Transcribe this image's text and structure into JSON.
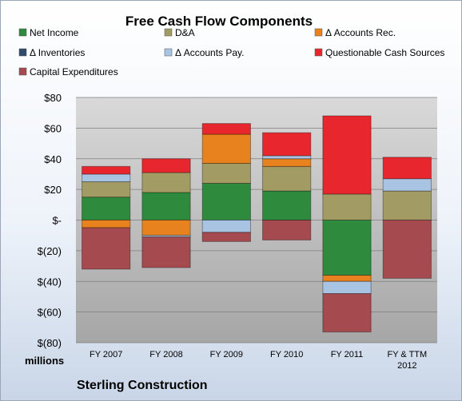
{
  "chart_data": {
    "type": "bar",
    "stacked": true,
    "title": "Free Cash Flow Components",
    "units_label": "millions",
    "company": "Sterling Construction",
    "categories": [
      "FY 2007",
      "FY 2008",
      "FY 2009",
      "FY 2010",
      "FY 2011",
      "FY & TTM 2012"
    ],
    "ylim": [
      -80,
      80
    ],
    "y_ticks": [
      80,
      60,
      40,
      20,
      0,
      -20,
      -40,
      -60,
      -80
    ],
    "y_tick_labels": [
      "$80",
      "$60",
      "$40",
      "$20",
      "$-",
      "$(20)",
      "$(40)",
      "$(60)",
      "$(80)"
    ],
    "grid": true,
    "legend_position": "top",
    "series": [
      {
        "name": "Net Income",
        "color": "#2e8b3e",
        "values": [
          15,
          18,
          24,
          19,
          -36,
          0
        ]
      },
      {
        "name": "D&A",
        "color": "#a39b64",
        "values": [
          10,
          13,
          13,
          16,
          17,
          19
        ]
      },
      {
        "name": "Δ Accounts Rec.",
        "color": "#e8821e",
        "values": [
          -5,
          -10,
          19,
          5,
          -4,
          0
        ]
      },
      {
        "name": "Δ Inventories",
        "color": "#2f4a6b",
        "values": [
          0,
          0,
          0,
          0,
          0,
          0
        ]
      },
      {
        "name": "Δ Accounts Pay.",
        "color": "#a9c3e3",
        "values": [
          5,
          -1,
          -8,
          2,
          -8,
          8
        ]
      },
      {
        "name": "Questionable Cash Sources",
        "color": "#e8262d",
        "values": [
          5,
          9,
          7,
          15,
          51,
          14
        ]
      },
      {
        "name": "Capital Expenditures",
        "color": "#a54a4f",
        "values": [
          -27,
          -20,
          -6,
          -13,
          -25,
          -38
        ]
      }
    ]
  }
}
